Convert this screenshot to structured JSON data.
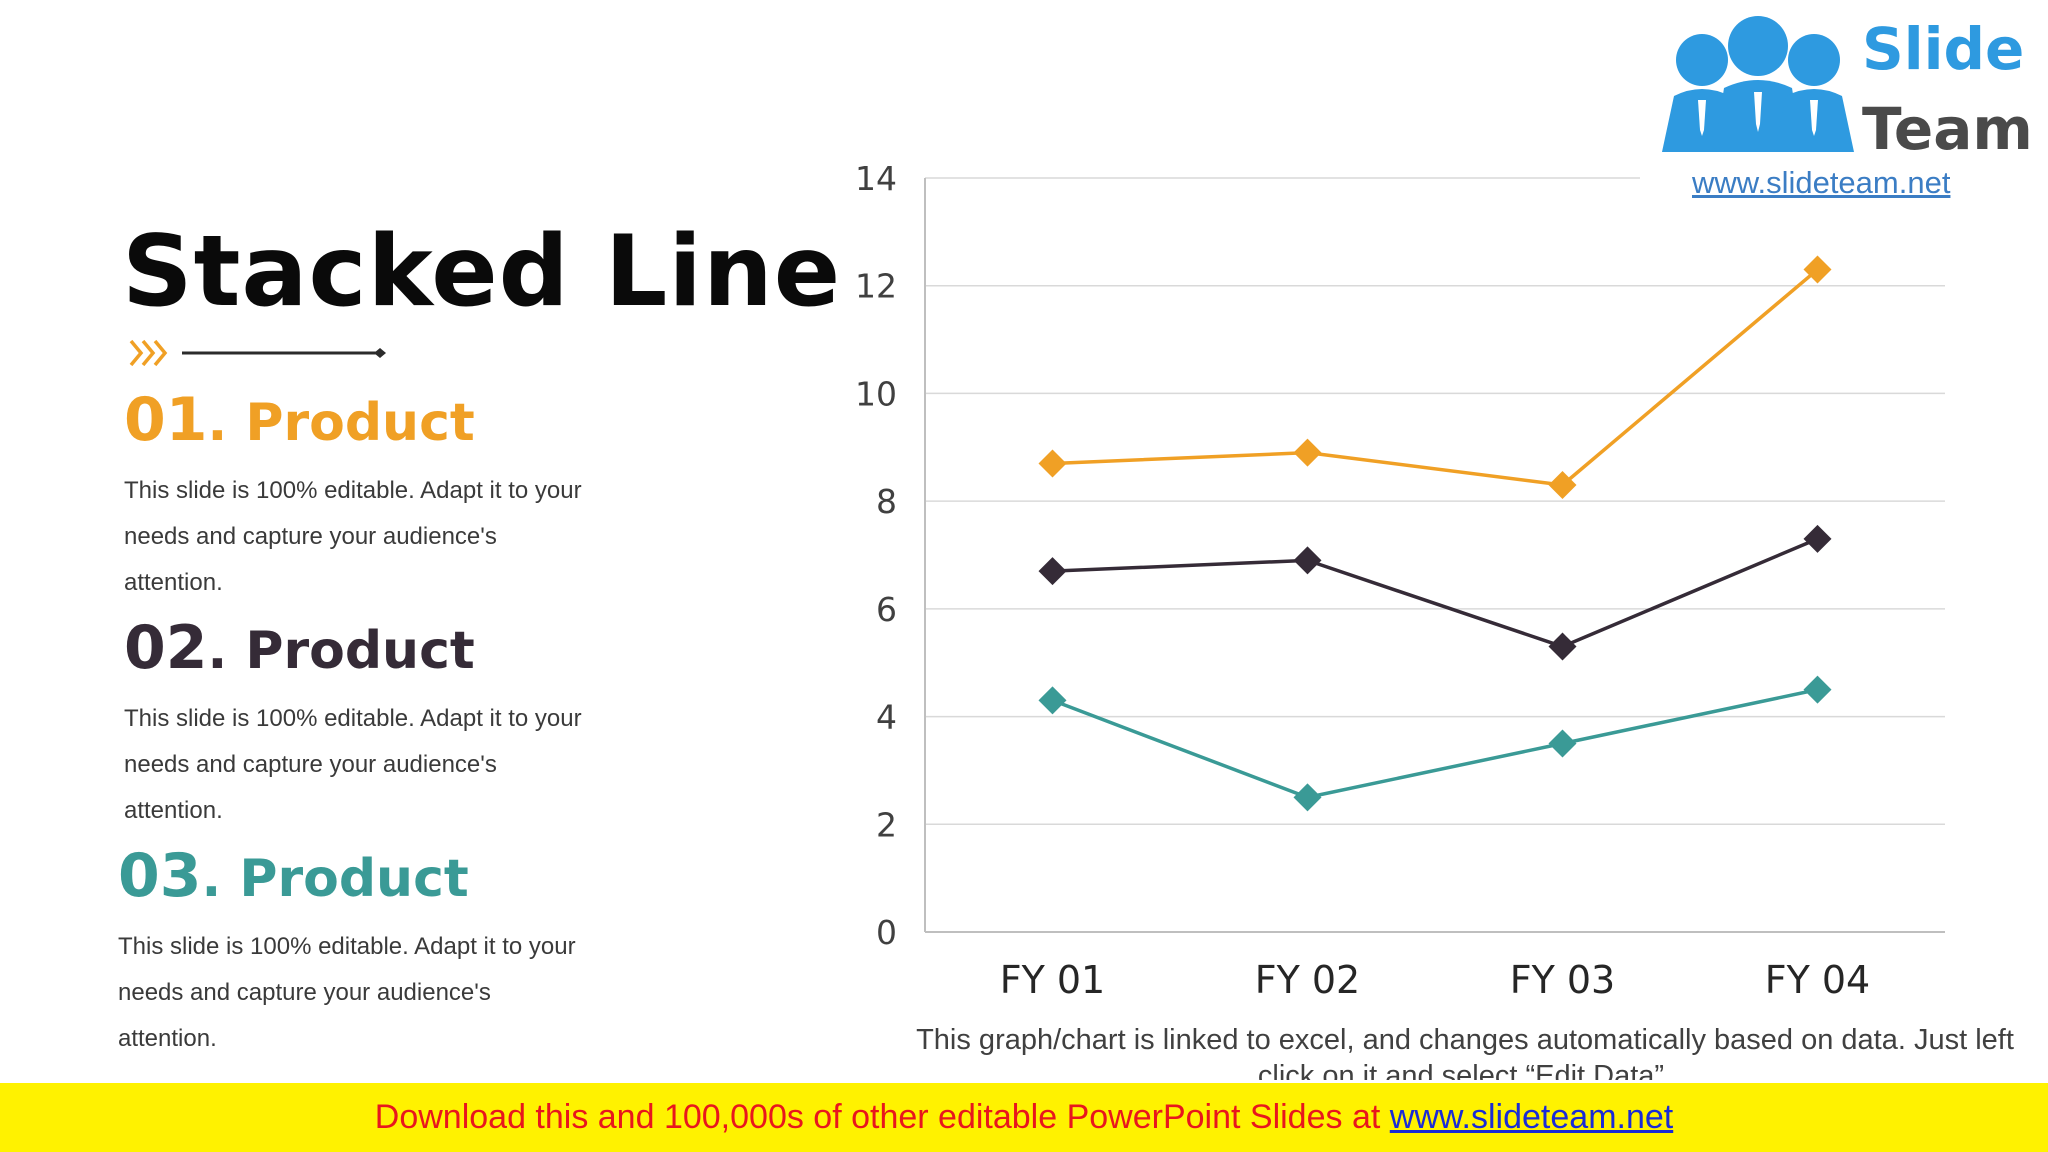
{
  "slide": {
    "title": "Stacked Line",
    "products": [
      {
        "number": "01",
        "label": ". Product",
        "color": "#f0a025",
        "text": "This slide is 100% editable. Adapt it to your needs and capture your audience's attention."
      },
      {
        "number": "02",
        "label": ". Product",
        "color": "#352b37",
        "text": "This slide is 100% editable. Adapt it to your needs and capture your audience's attention."
      },
      {
        "number": "03",
        "label": ". Product",
        "color": "#3a9a96",
        "text": "This slide is 100% editable. Adapt it to your needs and capture your audience's attention."
      }
    ],
    "chart_caption": "This graph/chart is linked to excel, and changes automatically based on data. Just left click on it and select “Edit Data”."
  },
  "logo": {
    "word1": "Slide",
    "word2": "Team",
    "url": "www.slideteam.net",
    "word1_color": "#2e9ae0",
    "word2_color": "#4a4a4a"
  },
  "footer": {
    "text": "Download this and 100,000s of other editable PowerPoint Slides at ",
    "link": "www.slideteam.net",
    "text_color": "#e8161d",
    "link_color": "#1a2bd6",
    "background": "#fff200"
  },
  "chart_data": {
    "type": "line",
    "title": "",
    "xlabel": "",
    "ylabel": "",
    "categories": [
      "FY 01",
      "FY 02",
      "FY 03",
      "FY 04"
    ],
    "ylim": [
      0,
      14
    ],
    "yticks": [
      0,
      2,
      4,
      6,
      8,
      10,
      12,
      14
    ],
    "grid": true,
    "legend": "none",
    "marker": "diamond",
    "series": [
      {
        "name": "Product 01",
        "color": "#f0a025",
        "values": [
          8.7,
          8.9,
          8.3,
          12.3
        ]
      },
      {
        "name": "Product 02",
        "color": "#352b37",
        "values": [
          6.7,
          6.9,
          5.3,
          7.3
        ]
      },
      {
        "name": "Product 03",
        "color": "#3a9a96",
        "values": [
          4.3,
          2.5,
          3.5,
          4.5
        ]
      }
    ]
  }
}
